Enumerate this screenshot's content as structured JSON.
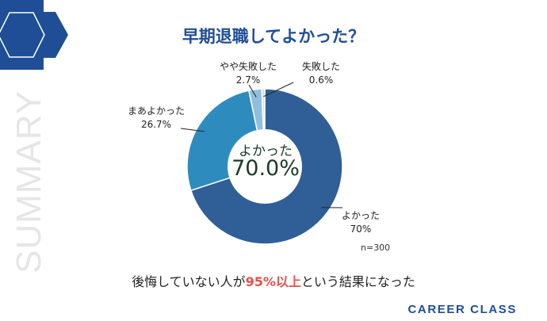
{
  "side_text": "SUMMARY",
  "brand": "CAREER CLASS",
  "summary": {
    "pre": "後悔していない人が",
    "highlight": "95%以上",
    "post": "という結果になった"
  },
  "colors": {
    "title": "#1f4e96",
    "highlight": "#e8504a",
    "brand": "#1f4e96",
    "center_text": "#1b3a28"
  },
  "chart_data": {
    "type": "pie",
    "title": "早期退職してよかった？",
    "center_label": "よかった",
    "center_value": "70.0%",
    "note": "n=300",
    "slices": [
      {
        "name": "よかった",
        "value": 70,
        "value_label": "70%",
        "color": "#2f5f96"
      },
      {
        "name": "まあよかった",
        "value": 26.7,
        "value_label": "26.7%",
        "color": "#2e8bbe"
      },
      {
        "name": "やや失敗した",
        "value": 2.7,
        "value_label": "2.7%",
        "color": "#8fbfdd"
      },
      {
        "name": "失敗した",
        "value": 0.6,
        "value_label": "0.6%",
        "color": "#c9e0ef"
      }
    ]
  }
}
